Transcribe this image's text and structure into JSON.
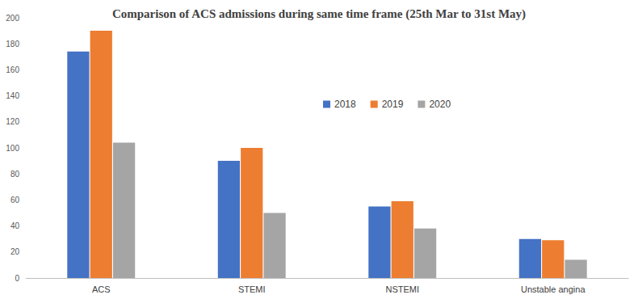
{
  "chart_data": {
    "type": "bar",
    "title": "Comparison of ACS admissions during same time frame (25th Mar to 31st May)",
    "categories": [
      "ACS",
      "STEMI",
      "NSTEMI",
      "Unstable angina"
    ],
    "series": [
      {
        "name": "2018",
        "color": "#4472c4",
        "values": [
          174,
          90,
          55,
          30
        ]
      },
      {
        "name": "2019",
        "color": "#ed7d31",
        "values": [
          190,
          100,
          59,
          29
        ]
      },
      {
        "name": "2020",
        "color": "#a5a5a5",
        "values": [
          104,
          50,
          38,
          14
        ]
      }
    ],
    "ylim": [
      0,
      200
    ],
    "yticks": [
      0,
      20,
      40,
      60,
      80,
      100,
      120,
      140,
      160,
      180,
      200
    ],
    "grid": false,
    "legend": "center"
  }
}
